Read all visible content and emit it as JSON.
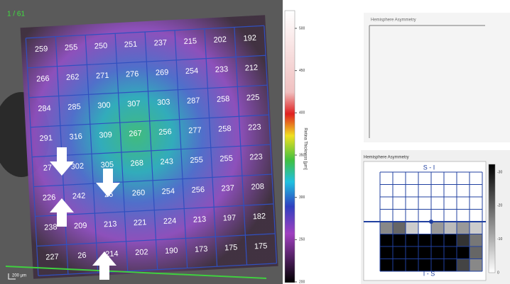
{
  "viewer": {
    "frame": "1 / 61",
    "scale_bar": "200 µm",
    "grid": [
      [
        "259",
        "255",
        "250",
        "251",
        "237",
        "215",
        "202",
        "192"
      ],
      [
        "266",
        "262",
        "271",
        "276",
        "269",
        "254",
        "233",
        "212"
      ],
      [
        "284",
        "285",
        "300",
        "307",
        "303",
        "287",
        "258",
        "225"
      ],
      [
        "291",
        "316",
        "309",
        "267",
        "256",
        "277",
        "258",
        "223"
      ],
      [
        "27",
        "302",
        "305",
        "268",
        "243",
        "255",
        "255",
        "223"
      ],
      [
        "226",
        "242",
        "26",
        "260",
        "254",
        "256",
        "237",
        "208"
      ],
      [
        "238",
        "209",
        "213",
        "221",
        "224",
        "213",
        "197",
        "182"
      ],
      [
        "227",
        "26",
        "214",
        "202",
        "190",
        "173",
        "175",
        "175"
      ]
    ]
  },
  "colorbar": {
    "label": "Retina Thickness [µm]",
    "ticks": [
      "500",
      "450",
      "400",
      "350",
      "300",
      "250",
      "200"
    ]
  },
  "asymmetry_top": {
    "title": "Hemisphere Asymmetry"
  },
  "asymmetry_bottom": {
    "title": "Hemisphere Asymmetry",
    "top_label": "S - I",
    "bottom_label": "I - S",
    "ticks": [
      "-30",
      "-20",
      "-10",
      "0"
    ]
  }
}
